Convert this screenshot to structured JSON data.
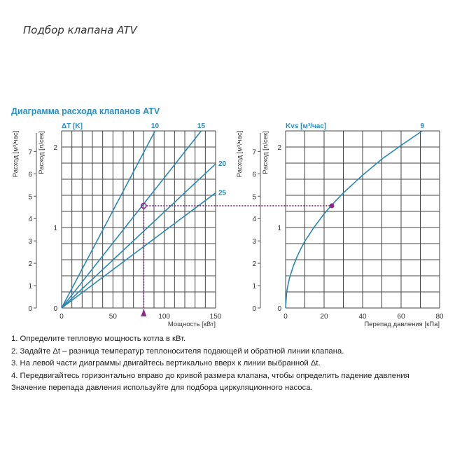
{
  "heading": "Подбор клапана ATV",
  "diagram_title": "Диаграмма расхода клапанов ATV",
  "colors": {
    "curve": "#2a88b5",
    "title": "#2a8fc1",
    "marker": "#8b2a8b",
    "grid": "#444444"
  },
  "chart_data": [
    {
      "type": "line",
      "legend_title": "ΔT [K]",
      "xlabel": "Мощность [кВт]",
      "ylabel": "Расход [л/сек]",
      "ylabel2": "Расход [м³/час]",
      "xlim": [
        0,
        150
      ],
      "ylim": [
        0,
        2.2
      ],
      "xticks": [
        "0",
        "50",
        "100",
        "150"
      ],
      "yticks": [
        "0",
        "1",
        "2"
      ],
      "yticks2": [
        "0",
        "1",
        "2",
        "3",
        "4",
        "5",
        "6",
        "7"
      ],
      "grid": true,
      "series": [
        {
          "name": "10",
          "x": [
            0,
            91
          ],
          "y": [
            0,
            2.2
          ]
        },
        {
          "name": "15",
          "x": [
            0,
            136
          ],
          "y": [
            0,
            2.2
          ]
        },
        {
          "name": "20",
          "x": [
            0,
            150
          ],
          "y": [
            0,
            1.79
          ]
        },
        {
          "name": "25",
          "x": [
            0,
            150
          ],
          "y": [
            0,
            1.43
          ]
        }
      ],
      "marker": {
        "x": 80,
        "y": 1.27
      }
    },
    {
      "type": "line",
      "legend_title": "Kvs [м³/час]",
      "xlabel": "Перепад давления [кПа]",
      "ylabel": "Расход [л/сек]",
      "ylabel2": "Расход [м³/час]",
      "xlim": [
        0,
        80
      ],
      "ylim": [
        0,
        2.2
      ],
      "xticks": [
        "0",
        "20",
        "40",
        "60",
        "80"
      ],
      "yticks": [
        "0",
        "1",
        "2"
      ],
      "yticks2": [
        "0",
        "1",
        "2",
        "3",
        "4",
        "5",
        "6",
        "7"
      ],
      "grid": true,
      "series": [
        {
          "name": "9",
          "x": [
            0,
            0.5,
            1,
            2,
            4,
            6,
            8,
            10,
            15,
            20,
            24,
            30,
            40,
            50,
            60,
            71
          ],
          "y": [
            0,
            0.18,
            0.26,
            0.37,
            0.52,
            0.64,
            0.74,
            0.83,
            1.01,
            1.17,
            1.28,
            1.43,
            1.65,
            1.85,
            2.02,
            2.2
          ]
        }
      ],
      "marker": {
        "x": 24,
        "y": 1.27
      }
    }
  ],
  "steps": [
    "1.  Определите тепловую мощность котла в кВт.",
    "2.  Задайте Δt – разница температур теплоносителя подающей и обратной линии клапана.",
    "3.  На левой части диаграммы двигайтесь вертикально вверх к линии выбранной Δt.",
    "4.  Передвигайтесь горизонтально вправо до кривой размера клапана, чтобы определить падение давления",
    "Значение перепада давления используйте для подбора циркуляционного насоса."
  ]
}
